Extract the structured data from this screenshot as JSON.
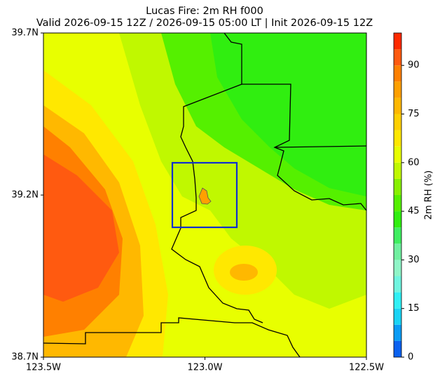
{
  "chart_data": {
    "type": "filled-contour-map",
    "title": "Lucas Fire: 2m RH f000",
    "subtitle": "Valid 2026-09-15 12Z / 2026-09-15 05:00 LT | Init 2026-09-15 12Z",
    "xlim": [
      -123.5,
      -122.5
    ],
    "ylim": [
      38.7,
      39.7
    ],
    "xticks": [
      {
        "value": -123.5,
        "label": "123.5W"
      },
      {
        "value": -123.0,
        "label": "123.0W"
      },
      {
        "value": -122.5,
        "label": "122.5W"
      }
    ],
    "yticks": [
      {
        "value": 38.7,
        "label": "38.7N"
      },
      {
        "value": 39.2,
        "label": "39.2N"
      },
      {
        "value": 39.7,
        "label": "39.7N"
      }
    ],
    "colorbar": {
      "label": "2m RH (%)",
      "lim": [
        0,
        100
      ],
      "ticks": [
        0,
        15,
        30,
        45,
        60,
        75,
        90
      ],
      "levels": [
        0,
        5,
        10,
        15,
        20,
        25,
        30,
        35,
        40,
        45,
        50,
        55,
        60,
        65,
        70,
        75,
        80,
        85,
        90,
        95,
        100
      ],
      "colors": [
        "#0b62f0",
        "#0a9cf5",
        "#1ad4f5",
        "#30f0f5",
        "#70f5e0",
        "#90f5c8",
        "#70f0a0",
        "#40ee60",
        "#30ee10",
        "#55f000",
        "#88f000",
        "#c0f800",
        "#e8ff00",
        "#ffe800",
        "#ffd000",
        "#ffb800",
        "#ffa000",
        "#ff8000",
        "#ff5a10",
        "#ff2a00"
      ]
    },
    "box_color": "#1030d0"
  }
}
